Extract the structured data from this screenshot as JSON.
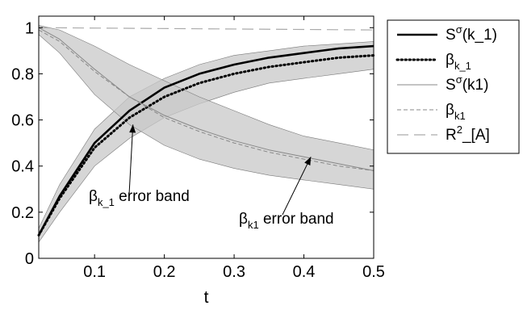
{
  "chart_data": {
    "type": "line",
    "title": "",
    "xlabel": "t",
    "ylabel": "",
    "xlim": [
      0.02,
      0.5
    ],
    "ylim": [
      0,
      1.05
    ],
    "x_ticks": [
      0.1,
      0.2,
      0.3,
      0.4,
      0.5
    ],
    "x_tick_labels": [
      "0.1",
      "0.2",
      "0.3",
      "0.4",
      "0.5"
    ],
    "y_ticks": [
      0,
      0.2,
      0.4,
      0.6,
      0.8,
      1
    ],
    "y_tick_labels": [
      "0",
      "0.2",
      "0.4",
      "0.6",
      "0.8",
      "1"
    ],
    "grid": false,
    "legend_position": "right-outside-top",
    "series": [
      {
        "name": "S^σ(k_1)",
        "legend_main": "S",
        "legend_sup": "σ",
        "legend_tail": "(k_1)",
        "style": "solid-thick",
        "color": "#000000",
        "x": [
          0.02,
          0.05,
          0.1,
          0.15,
          0.2,
          0.25,
          0.3,
          0.35,
          0.4,
          0.45,
          0.5
        ],
        "y": [
          0.1,
          0.27,
          0.5,
          0.64,
          0.74,
          0.8,
          0.84,
          0.87,
          0.89,
          0.91,
          0.92
        ]
      },
      {
        "name": "β_{k_1}",
        "legend_main": "β",
        "legend_sub": "k_1",
        "style": "dotted-thick",
        "color": "#000000",
        "x": [
          0.02,
          0.05,
          0.1,
          0.15,
          0.2,
          0.25,
          0.3,
          0.35,
          0.4,
          0.45,
          0.5
        ],
        "y": [
          0.1,
          0.26,
          0.48,
          0.61,
          0.7,
          0.76,
          0.8,
          0.83,
          0.85,
          0.87,
          0.88
        ]
      },
      {
        "name": "S^σ(k1)",
        "legend_main": "S",
        "legend_sup": "σ",
        "legend_tail": "(k1)",
        "style": "solid-thin",
        "color": "#888888",
        "x": [
          0.02,
          0.05,
          0.1,
          0.15,
          0.2,
          0.25,
          0.3,
          0.35,
          0.4,
          0.45,
          0.5
        ],
        "y": [
          1.0,
          0.95,
          0.82,
          0.7,
          0.62,
          0.56,
          0.51,
          0.47,
          0.44,
          0.41,
          0.38
        ]
      },
      {
        "name": "β_{k1}",
        "legend_main": "β",
        "legend_sub": "k1",
        "style": "dashed-thin",
        "color": "#888888",
        "x": [
          0.02,
          0.05,
          0.1,
          0.15,
          0.2,
          0.25,
          0.3,
          0.35,
          0.4,
          0.45,
          0.5
        ],
        "y": [
          0.99,
          0.94,
          0.81,
          0.7,
          0.61,
          0.55,
          0.5,
          0.46,
          0.43,
          0.4,
          0.38
        ]
      },
      {
        "name": "R^2_[A]",
        "legend_main": "R",
        "legend_sup": "2",
        "legend_tail": "_[A]",
        "style": "long-dash",
        "color": "#aaaaaa",
        "x": [
          0.02,
          0.5
        ],
        "y": [
          1.0,
          0.99
        ]
      }
    ],
    "bands": [
      {
        "for": "β_{k_1}",
        "color": "#c8c8c8",
        "x": [
          0.02,
          0.05,
          0.1,
          0.15,
          0.2,
          0.25,
          0.3,
          0.35,
          0.4,
          0.45,
          0.5
        ],
        "upper": [
          0.13,
          0.32,
          0.56,
          0.7,
          0.78,
          0.84,
          0.88,
          0.9,
          0.92,
          0.93,
          0.94
        ],
        "lower": [
          0.07,
          0.2,
          0.4,
          0.52,
          0.61,
          0.67,
          0.72,
          0.76,
          0.78,
          0.8,
          0.82
        ]
      },
      {
        "for": "β_{k1}",
        "color": "#c8c8c8",
        "x": [
          0.02,
          0.05,
          0.1,
          0.15,
          0.2,
          0.25,
          0.3,
          0.35,
          0.4,
          0.45,
          0.5
        ],
        "upper": [
          1.01,
          0.99,
          0.92,
          0.84,
          0.77,
          0.7,
          0.64,
          0.58,
          0.53,
          0.5,
          0.47
        ],
        "lower": [
          0.97,
          0.89,
          0.71,
          0.58,
          0.49,
          0.43,
          0.39,
          0.36,
          0.34,
          0.32,
          0.3
        ]
      }
    ],
    "annotations": [
      {
        "main": "β",
        "sub": "k_1",
        "text": " error band",
        "arrow_to": [
          0.155,
          0.58
        ]
      },
      {
        "main": "β",
        "sub": "k1",
        "text": " error band",
        "arrow_to": [
          0.41,
          0.44
        ]
      }
    ]
  }
}
